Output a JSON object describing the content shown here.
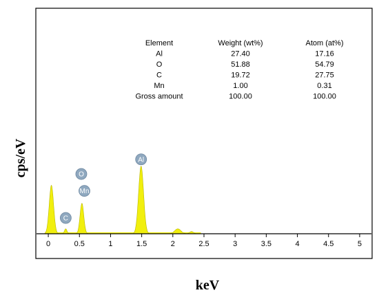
{
  "chart_data": {
    "type": "area",
    "xlabel": "keV",
    "ylabel": "cps/eV",
    "xlim": [
      -0.2,
      5.2
    ],
    "ylim": [
      0,
      1
    ],
    "x_ticks": [
      "0",
      "0.5",
      "1",
      "1.5",
      "2",
      "2.5",
      "3",
      "3.5",
      "4",
      "4.5",
      "5"
    ],
    "grid": false,
    "fill_color": "#f1ef0e",
    "peaks": [
      {
        "x": 0.05,
        "height": 0.215,
        "width": 0.035
      },
      {
        "x": 0.28,
        "height": 0.022,
        "width": 0.02
      },
      {
        "x": 0.54,
        "height": 0.135,
        "width": 0.03
      },
      {
        "x": 1.49,
        "height": 0.3,
        "width": 0.04
      },
      {
        "x": 2.08,
        "height": 0.022,
        "width": 0.05
      },
      {
        "x": 2.3,
        "height": 0.01,
        "width": 0.03
      }
    ],
    "element_markers": [
      {
        "label": "C",
        "x": 0.28,
        "y": 0.07
      },
      {
        "label": "O",
        "x": 0.53,
        "y": 0.265
      },
      {
        "label": "Mn",
        "x": 0.58,
        "y": 0.19
      },
      {
        "label": "Al",
        "x": 1.49,
        "y": 0.33
      }
    ],
    "marker_color": "#8fa8bf",
    "table": {
      "headers": [
        "Element",
        "Weight (wt%)",
        "Atom (at%)"
      ],
      "rows": [
        [
          "Al",
          "27.40",
          "17.16"
        ],
        [
          "O",
          "51.88",
          "54.79"
        ],
        [
          "C",
          "19.72",
          "27.75"
        ],
        [
          "Mn",
          "1.00",
          "0.31"
        ],
        [
          "Gross amount",
          "100.00",
          "100.00"
        ]
      ]
    }
  }
}
